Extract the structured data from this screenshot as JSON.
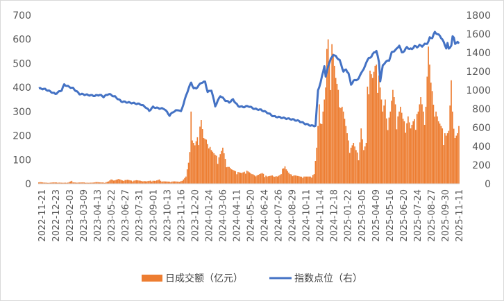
{
  "chart_data": {
    "type": "bar+line",
    "title": "",
    "xlabel": "",
    "ylabel": "",
    "y2label": "",
    "ylim": [
      0,
      700
    ],
    "y2lim": [
      0,
      1800
    ],
    "yticks": [
      "0",
      "100",
      "200",
      "300",
      "400",
      "500",
      "600",
      "700"
    ],
    "y2ticks": [
      "0",
      "200",
      "400",
      "600",
      "800",
      "1000",
      "1200",
      "1400",
      "1600",
      "1800"
    ],
    "x_tick_labels": [
      "2022-11-21",
      "2022-12-23",
      "2023-02-03",
      "2023-03-09",
      "2023-04-13",
      "2023-05-22",
      "2023-06-27",
      "2023-07-31",
      "2023-09-01",
      "2023-10-13",
      "2023-11-16",
      "2023-12-20",
      "2024-01-24",
      "2024-03-06",
      "2024-04-11",
      "2024-05-20",
      "2024-06-24",
      "2024-07-26",
      "2024-08-29",
      "2024-10-11",
      "2024-11-14",
      "2024-12-18",
      "2025-01-22",
      "2025-03-05",
      "2025-04-09",
      "2025-05-16",
      "2025-06-20",
      "2025-07-24",
      "2025-08-27",
      "2025-09-30",
      "2025-11-11"
    ],
    "gridlines": false,
    "legend_position": "bottom",
    "colors": {
      "bar": "#ED7D31",
      "line": "#4472C4"
    },
    "series": [
      {
        "name": "日成交额（亿元）",
        "type": "bar",
        "axis": "left",
        "anchors": [
          {
            "i": 0,
            "v": 8
          },
          {
            "i": 4,
            "v": 5
          },
          {
            "i": 8,
            "v": 4
          },
          {
            "i": 12,
            "v": 6
          },
          {
            "i": 16,
            "v": 5
          },
          {
            "i": 19,
            "v": 4
          },
          {
            "i": 23,
            "v": 5
          },
          {
            "i": 26,
            "v": 12
          },
          {
            "i": 27,
            "v": 6
          },
          {
            "i": 31,
            "v": 5
          },
          {
            "i": 35,
            "v": 6
          },
          {
            "i": 39,
            "v": 4
          },
          {
            "i": 43,
            "v": 5
          },
          {
            "i": 45,
            "v": 8
          },
          {
            "i": 48,
            "v": 6
          },
          {
            "i": 52,
            "v": 5
          },
          {
            "i": 55,
            "v": 10
          },
          {
            "i": 57,
            "v": 18
          },
          {
            "i": 60,
            "v": 15
          },
          {
            "i": 63,
            "v": 20
          },
          {
            "i": 66,
            "v": 14
          },
          {
            "i": 70,
            "v": 17
          },
          {
            "i": 74,
            "v": 12
          },
          {
            "i": 77,
            "v": 15
          },
          {
            "i": 81,
            "v": 12
          },
          {
            "i": 85,
            "v": 10
          },
          {
            "i": 88,
            "v": 13
          },
          {
            "i": 92,
            "v": 12
          },
          {
            "i": 95,
            "v": 18
          },
          {
            "i": 97,
            "v": 10
          },
          {
            "i": 99,
            "v": 10
          },
          {
            "i": 103,
            "v": 9
          },
          {
            "i": 107,
            "v": 10
          },
          {
            "i": 110,
            "v": 9
          },
          {
            "i": 113,
            "v": 12
          },
          {
            "i": 116,
            "v": 30
          },
          {
            "i": 118,
            "v": 90
          },
          {
            "i": 119,
            "v": 160
          },
          {
            "i": 120,
            "v": 300
          },
          {
            "i": 121,
            "v": 180
          },
          {
            "i": 123,
            "v": 160
          },
          {
            "i": 126,
            "v": 210
          },
          {
            "i": 128,
            "v": 265
          },
          {
            "i": 130,
            "v": 190
          },
          {
            "i": 133,
            "v": 180
          },
          {
            "i": 136,
            "v": 140
          },
          {
            "i": 139,
            "v": 120
          },
          {
            "i": 142,
            "v": 110
          },
          {
            "i": 145,
            "v": 150
          },
          {
            "i": 148,
            "v": 80
          },
          {
            "i": 152,
            "v": 60
          },
          {
            "i": 156,
            "v": 50
          },
          {
            "i": 160,
            "v": 45
          },
          {
            "i": 164,
            "v": 55
          },
          {
            "i": 168,
            "v": 40
          },
          {
            "i": 172,
            "v": 35
          },
          {
            "i": 176,
            "v": 45
          },
          {
            "i": 180,
            "v": 30
          },
          {
            "i": 184,
            "v": 35
          },
          {
            "i": 188,
            "v": 30
          },
          {
            "i": 191,
            "v": 40
          },
          {
            "i": 193,
            "v": 85
          },
          {
            "i": 195,
            "v": 60
          },
          {
            "i": 198,
            "v": 40
          },
          {
            "i": 202,
            "v": 35
          },
          {
            "i": 206,
            "v": 30
          },
          {
            "i": 210,
            "v": 30
          },
          {
            "i": 214,
            "v": 30
          },
          {
            "i": 217,
            "v": 40
          },
          {
            "i": 219,
            "v": 150
          },
          {
            "i": 220,
            "v": 240
          },
          {
            "i": 221,
            "v": 330
          },
          {
            "i": 222,
            "v": 270
          },
          {
            "i": 224,
            "v": 300
          },
          {
            "i": 226,
            "v": 400
          },
          {
            "i": 227,
            "v": 560
          },
          {
            "i": 228,
            "v": 600
          },
          {
            "i": 229,
            "v": 500
          },
          {
            "i": 231,
            "v": 580
          },
          {
            "i": 232,
            "v": 540
          },
          {
            "i": 234,
            "v": 440
          },
          {
            "i": 236,
            "v": 390
          },
          {
            "i": 238,
            "v": 340
          },
          {
            "i": 240,
            "v": 300
          },
          {
            "i": 242,
            "v": 240
          },
          {
            "i": 244,
            "v": 180
          },
          {
            "i": 246,
            "v": 150
          },
          {
            "i": 248,
            "v": 170
          },
          {
            "i": 250,
            "v": 140
          },
          {
            "i": 252,
            "v": 120
          },
          {
            "i": 254,
            "v": 230
          },
          {
            "i": 256,
            "v": 140
          },
          {
            "i": 258,
            "v": 170
          },
          {
            "i": 259,
            "v": 420
          },
          {
            "i": 261,
            "v": 470
          },
          {
            "i": 263,
            "v": 440
          },
          {
            "i": 265,
            "v": 490
          },
          {
            "i": 267,
            "v": 500
          },
          {
            "i": 269,
            "v": 400
          },
          {
            "i": 271,
            "v": 300
          },
          {
            "i": 273,
            "v": 350
          },
          {
            "i": 275,
            "v": 250
          },
          {
            "i": 277,
            "v": 300
          },
          {
            "i": 279,
            "v": 390
          },
          {
            "i": 281,
            "v": 330
          },
          {
            "i": 283,
            "v": 280
          },
          {
            "i": 285,
            "v": 320
          },
          {
            "i": 287,
            "v": 270
          },
          {
            "i": 289,
            "v": 250
          },
          {
            "i": 291,
            "v": 280
          },
          {
            "i": 293,
            "v": 230
          },
          {
            "i": 295,
            "v": 260
          },
          {
            "i": 297,
            "v": 280
          },
          {
            "i": 299,
            "v": 300
          },
          {
            "i": 301,
            "v": 360
          },
          {
            "i": 303,
            "v": 300
          },
          {
            "i": 305,
            "v": 320
          },
          {
            "i": 307,
            "v": 570
          },
          {
            "i": 309,
            "v": 420
          },
          {
            "i": 311,
            "v": 350
          },
          {
            "i": 313,
            "v": 300
          },
          {
            "i": 315,
            "v": 260
          },
          {
            "i": 317,
            "v": 240
          },
          {
            "i": 319,
            "v": 220
          },
          {
            "i": 321,
            "v": 200
          },
          {
            "i": 323,
            "v": 220
          },
          {
            "i": 325,
            "v": 430
          },
          {
            "i": 327,
            "v": 250
          },
          {
            "i": 328,
            "v": 190
          },
          {
            "i": 330,
            "v": 210
          },
          {
            "i": 331,
            "v": 240
          }
        ]
      },
      {
        "name": "指数点位（右）",
        "type": "line",
        "axis": "right",
        "anchors": [
          {
            "i": 0,
            "v": 1020
          },
          {
            "i": 5,
            "v": 1010
          },
          {
            "i": 10,
            "v": 980
          },
          {
            "i": 13,
            "v": 960
          },
          {
            "i": 18,
            "v": 1000
          },
          {
            "i": 20,
            "v": 1060
          },
          {
            "i": 23,
            "v": 1040
          },
          {
            "i": 27,
            "v": 1020
          },
          {
            "i": 32,
            "v": 960
          },
          {
            "i": 38,
            "v": 950
          },
          {
            "i": 44,
            "v": 940
          },
          {
            "i": 48,
            "v": 950
          },
          {
            "i": 51,
            "v": 930
          },
          {
            "i": 55,
            "v": 960
          },
          {
            "i": 60,
            "v": 930
          },
          {
            "i": 65,
            "v": 880
          },
          {
            "i": 70,
            "v": 870
          },
          {
            "i": 75,
            "v": 860
          },
          {
            "i": 80,
            "v": 850
          },
          {
            "i": 84,
            "v": 820
          },
          {
            "i": 87,
            "v": 780
          },
          {
            "i": 90,
            "v": 820
          },
          {
            "i": 93,
            "v": 810
          },
          {
            "i": 99,
            "v": 800
          },
          {
            "i": 103,
            "v": 730
          },
          {
            "i": 106,
            "v": 770
          },
          {
            "i": 110,
            "v": 790
          },
          {
            "i": 112,
            "v": 770
          },
          {
            "i": 116,
            "v": 940
          },
          {
            "i": 118,
            "v": 1020
          },
          {
            "i": 120,
            "v": 1080
          },
          {
            "i": 122,
            "v": 1020
          },
          {
            "i": 124,
            "v": 1020
          },
          {
            "i": 128,
            "v": 1080
          },
          {
            "i": 131,
            "v": 1090
          },
          {
            "i": 133,
            "v": 980
          },
          {
            "i": 136,
            "v": 1000
          },
          {
            "i": 139,
            "v": 830
          },
          {
            "i": 143,
            "v": 940
          },
          {
            "i": 147,
            "v": 890
          },
          {
            "i": 150,
            "v": 870
          },
          {
            "i": 153,
            "v": 900
          },
          {
            "i": 157,
            "v": 830
          },
          {
            "i": 161,
            "v": 820
          },
          {
            "i": 165,
            "v": 830
          },
          {
            "i": 170,
            "v": 800
          },
          {
            "i": 175,
            "v": 790
          },
          {
            "i": 180,
            "v": 760
          },
          {
            "i": 185,
            "v": 720
          },
          {
            "i": 190,
            "v": 710
          },
          {
            "i": 194,
            "v": 700
          },
          {
            "i": 199,
            "v": 690
          },
          {
            "i": 205,
            "v": 670
          },
          {
            "i": 210,
            "v": 640
          },
          {
            "i": 215,
            "v": 620
          },
          {
            "i": 218,
            "v": 620
          },
          {
            "i": 220,
            "v": 1000
          },
          {
            "i": 222,
            "v": 1080
          },
          {
            "i": 223,
            "v": 1140
          },
          {
            "i": 225,
            "v": 1260
          },
          {
            "i": 226,
            "v": 1140
          },
          {
            "i": 228,
            "v": 1260
          },
          {
            "i": 230,
            "v": 1330
          },
          {
            "i": 232,
            "v": 1380
          },
          {
            "i": 234,
            "v": 1360
          },
          {
            "i": 237,
            "v": 1320
          },
          {
            "i": 240,
            "v": 1200
          },
          {
            "i": 242,
            "v": 1220
          },
          {
            "i": 244,
            "v": 1180
          },
          {
            "i": 246,
            "v": 1060
          },
          {
            "i": 248,
            "v": 1100
          },
          {
            "i": 250,
            "v": 1110
          },
          {
            "i": 252,
            "v": 1120
          },
          {
            "i": 254,
            "v": 1190
          },
          {
            "i": 256,
            "v": 1220
          },
          {
            "i": 258,
            "v": 1300
          },
          {
            "i": 260,
            "v": 1340
          },
          {
            "i": 262,
            "v": 1360
          },
          {
            "i": 264,
            "v": 1400
          },
          {
            "i": 266,
            "v": 1420
          },
          {
            "i": 268,
            "v": 1300
          },
          {
            "i": 269,
            "v": 1100
          },
          {
            "i": 271,
            "v": 1260
          },
          {
            "i": 273,
            "v": 1300
          },
          {
            "i": 276,
            "v": 1320
          },
          {
            "i": 278,
            "v": 1400
          },
          {
            "i": 280,
            "v": 1420
          },
          {
            "i": 282,
            "v": 1440
          },
          {
            "i": 284,
            "v": 1480
          },
          {
            "i": 286,
            "v": 1400
          },
          {
            "i": 288,
            "v": 1420
          },
          {
            "i": 290,
            "v": 1460
          },
          {
            "i": 292,
            "v": 1440
          },
          {
            "i": 294,
            "v": 1440
          },
          {
            "i": 296,
            "v": 1470
          },
          {
            "i": 298,
            "v": 1460
          },
          {
            "i": 300,
            "v": 1480
          },
          {
            "i": 302,
            "v": 1470
          },
          {
            "i": 304,
            "v": 1490
          },
          {
            "i": 306,
            "v": 1500
          },
          {
            "i": 307,
            "v": 1520
          },
          {
            "i": 308,
            "v": 1560
          },
          {
            "i": 310,
            "v": 1560
          },
          {
            "i": 312,
            "v": 1620
          },
          {
            "i": 314,
            "v": 1600
          },
          {
            "i": 316,
            "v": 1580
          },
          {
            "i": 318,
            "v": 1540
          },
          {
            "i": 320,
            "v": 1480
          },
          {
            "i": 321,
            "v": 1450
          },
          {
            "i": 322,
            "v": 1500
          },
          {
            "i": 323,
            "v": 1440
          },
          {
            "i": 325,
            "v": 1480
          },
          {
            "i": 326,
            "v": 1570
          },
          {
            "i": 327,
            "v": 1560
          },
          {
            "i": 328,
            "v": 1500
          },
          {
            "i": 330,
            "v": 1510
          },
          {
            "i": 331,
            "v": 1500
          }
        ]
      }
    ]
  }
}
